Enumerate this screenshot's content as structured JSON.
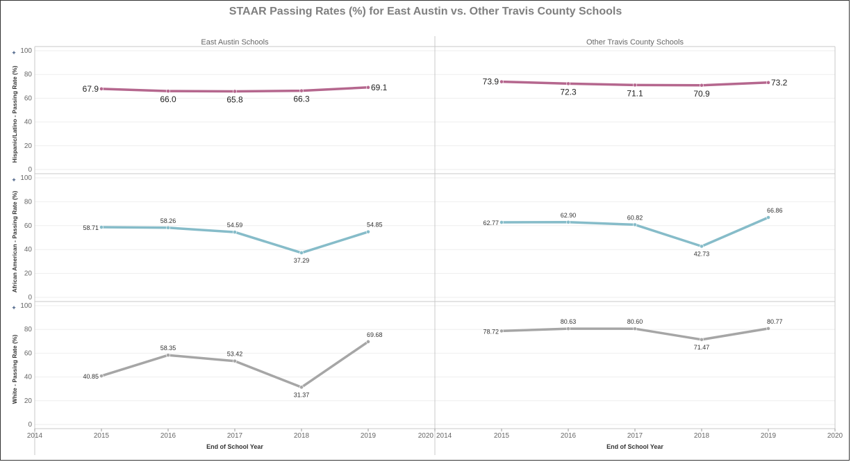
{
  "chart_data": {
    "type": "line",
    "title": "STAAR Passing Rates (%) for East Austin vs. Other Travis County Schools",
    "xlabel": "End of School Year",
    "x_ticks": [
      2014,
      2015,
      2016,
      2017,
      2018,
      2019,
      2020
    ],
    "xlim": [
      2014,
      2020
    ],
    "ylim": [
      0,
      100
    ],
    "y_ticks": [
      0,
      20,
      40,
      60,
      80,
      100
    ],
    "grid": true,
    "columns": [
      "East Austin Schools",
      "Other Travis County Schools"
    ],
    "rows": [
      {
        "ylabel": "Hispanic/Latino - Passing Rate (%)",
        "color": "#b5678e",
        "label_format": "1dp",
        "panels": [
          {
            "x": [
              2015,
              2016,
              2017,
              2018,
              2019
            ],
            "y": [
              67.9,
              66.0,
              65.8,
              66.3,
              69.1
            ],
            "labels": [
              "67.9",
              "66.0",
              "65.8",
              "66.3",
              "69.1"
            ]
          },
          {
            "x": [
              2015,
              2016,
              2017,
              2018,
              2019
            ],
            "y": [
              73.9,
              72.3,
              71.1,
              70.9,
              73.2
            ],
            "labels": [
              "73.9",
              "72.3",
              "71.1",
              "70.9",
              "73.2"
            ]
          }
        ]
      },
      {
        "ylabel": "African American - Passing Rate (%)",
        "color": "#86bcc9",
        "label_format": "2dp",
        "panels": [
          {
            "x": [
              2015,
              2016,
              2017,
              2018,
              2019
            ],
            "y": [
              58.71,
              58.26,
              54.59,
              37.29,
              54.85
            ],
            "labels": [
              "58.71",
              "58.26",
              "54.59",
              "37.29",
              "54.85"
            ]
          },
          {
            "x": [
              2015,
              2016,
              2017,
              2018,
              2019
            ],
            "y": [
              62.77,
              62.9,
              60.82,
              42.73,
              66.86
            ],
            "labels": [
              "62.77",
              "62.90",
              "60.82",
              "42.73",
              "66.86"
            ]
          }
        ]
      },
      {
        "ylabel": "White - Passing Rate (%)",
        "color": "#a6a6a6",
        "label_format": "2dp",
        "panels": [
          {
            "x": [
              2015,
              2016,
              2017,
              2018,
              2019
            ],
            "y": [
              40.85,
              58.35,
              53.42,
              31.37,
              69.68
            ],
            "labels": [
              "40.85",
              "58.35",
              "53.42",
              "31.37",
              "69.68"
            ]
          },
          {
            "x": [
              2015,
              2016,
              2017,
              2018,
              2019
            ],
            "y": [
              78.72,
              80.63,
              80.6,
              71.47,
              80.77
            ],
            "labels": [
              "78.72",
              "80.63",
              "80.60",
              "71.47",
              "80.77"
            ]
          }
        ]
      }
    ]
  }
}
